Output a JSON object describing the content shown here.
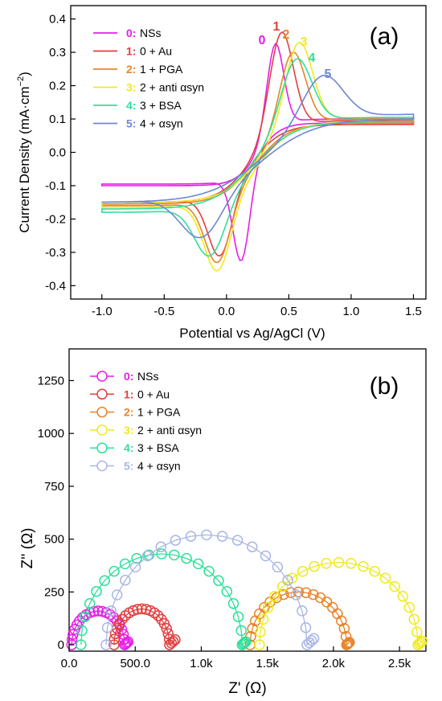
{
  "chart_data": [
    {
      "panel": "(a)",
      "type": "line",
      "xlabel": "Potential vs Ag/AgCl (V)",
      "ylabel": "Current Density (mA·cm",
      "ylabel_sup": "−2",
      "ylabel_end": ")",
      "xlim": [
        -1.25,
        1.6
      ],
      "ylim": [
        -0.44,
        0.44
      ],
      "xticks": [
        -1.0,
        -0.5,
        0.0,
        0.5,
        1.0,
        1.5
      ],
      "xtick_labels": [
        "-1.0",
        "-0.5",
        "0.0",
        "0.5",
        "1.0",
        "1.5"
      ],
      "yticks": [
        -0.4,
        -0.3,
        -0.2,
        -0.1,
        0.0,
        0.1,
        0.2,
        0.3,
        0.4
      ],
      "ytick_labels": [
        "-0.4",
        "-0.3",
        "-0.2",
        "-0.1",
        "0.0",
        "0.1",
        "0.2",
        "0.3",
        "0.4"
      ],
      "series": [
        {
          "num": "0",
          "name": "NSs",
          "color": "#e61ee6",
          "ox_peak": [
            0.39,
            0.325
          ],
          "red_peak": [
            0.12,
            -0.325
          ],
          "anodic_start": -0.1,
          "cathodic_end": -0.095,
          "end_high": 0.1,
          "sharp": 0.1
        },
        {
          "num": "1",
          "name": "0 + Au",
          "color": "#e23f3f",
          "ox_peak": [
            0.44,
            0.36
          ],
          "red_peak": [
            -0.05,
            -0.31
          ],
          "anodic_start": -0.15,
          "cathodic_end": -0.15,
          "end_high": 0.095,
          "sharp": 0.14
        },
        {
          "num": "2",
          "name": "1 + PGA",
          "color": "#e8842a",
          "ox_peak": [
            0.53,
            0.3
          ],
          "red_peak": [
            -0.07,
            -0.33
          ],
          "anodic_start": -0.155,
          "cathodic_end": -0.16,
          "end_high": 0.1,
          "sharp": 0.15
        },
        {
          "num": "3",
          "name": "2 + anti αsyn",
          "color": "#f0ea1e",
          "ox_peak": [
            0.58,
            0.33
          ],
          "red_peak": [
            -0.07,
            -0.355
          ],
          "anodic_start": -0.15,
          "cathodic_end": -0.165,
          "end_high": 0.105,
          "sharp": 0.16
        },
        {
          "num": "4",
          "name": "3 + BSA",
          "color": "#2ee09a",
          "ox_peak": [
            0.56,
            0.28
          ],
          "red_peak": [
            -0.13,
            -0.31
          ],
          "anodic_start": -0.17,
          "cathodic_end": -0.18,
          "end_high": 0.105,
          "sharp": 0.18
        },
        {
          "num": "5",
          "name": "4 + αsyn",
          "color": "#6f86d6",
          "ox_peak": [
            0.77,
            0.23
          ],
          "red_peak": [
            -0.2,
            -0.255
          ],
          "anodic_start": -0.15,
          "cathodic_end": -0.15,
          "end_high": 0.115,
          "sharp": 0.24
        }
      ],
      "peak_labels": [
        "0",
        "1",
        "2",
        "3",
        "4",
        "5"
      ]
    },
    {
      "panel": "(b)",
      "type": "scatter",
      "xlabel": "Z' (Ω)",
      "ylabel": "Z'' (Ω)",
      "xlim": [
        0,
        2700
      ],
      "ylim": [
        -30,
        1400
      ],
      "xticks": [
        0,
        500,
        1000,
        1500,
        2000,
        2500
      ],
      "xtick_labels": [
        "0.0",
        "500.0",
        "1.0k",
        "1.5k",
        "2.0k",
        "2.5k"
      ],
      "yticks": [
        0,
        250,
        500,
        750,
        1000,
        1250
      ],
      "ytick_labels": [
        "0",
        "250",
        "500",
        "750",
        "1000",
        "1250"
      ],
      "series": [
        {
          "num": "0",
          "name": "NSs",
          "color": "#e61ee6",
          "x_start": 20,
          "x_end": 420,
          "r_semi": 160,
          "tail": 25
        },
        {
          "num": "1",
          "name": "0 + Au",
          "color": "#e23f3f",
          "x_start": 340,
          "x_end": 760,
          "r_semi": 170,
          "tail": 40
        },
        {
          "num": "2",
          "name": "1 + PGA",
          "color": "#e8842a",
          "x_start": 1370,
          "x_end": 2100,
          "r_semi": 250,
          "tail": 20
        },
        {
          "num": "3",
          "name": "2 + anti αsyn",
          "color": "#f0ea1e",
          "x_start": 1440,
          "x_end": 2640,
          "r_semi": 390,
          "tail": 30
        },
        {
          "num": "4",
          "name": "3 + BSA",
          "color": "#2ee09a",
          "x_start": 90,
          "x_end": 1310,
          "r_semi": 430,
          "tail": 25
        },
        {
          "num": "5",
          "name": "4 + αsyn",
          "color": "#a9b6e6",
          "x_start": 280,
          "x_end": 1800,
          "r_semi": 520,
          "tail": 50
        }
      ]
    }
  ]
}
